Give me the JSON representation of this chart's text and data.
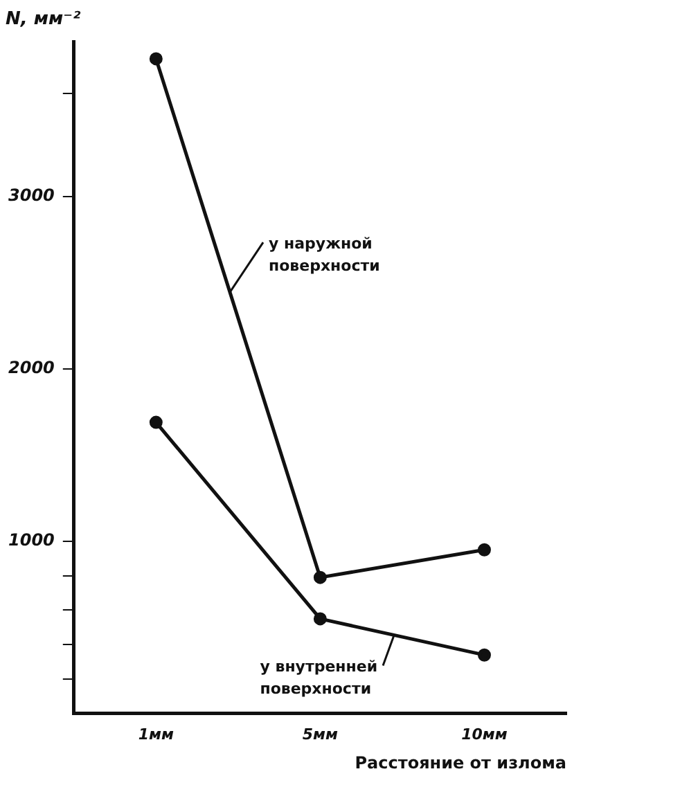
{
  "chart_data": {
    "type": "line",
    "xlabel": "Расстояние от излома",
    "ylabel": "N, мм⁻²",
    "categories": [
      "1мм",
      "5мм",
      "10мм"
    ],
    "series": [
      {
        "name": "у наружной поверхности",
        "color": "#111111",
        "values": [
          3800,
          790,
          950
        ]
      },
      {
        "name": "у внутренней поверхности",
        "color": "#111111",
        "values": [
          1690,
          550,
          340
        ]
      }
    ],
    "ylim": [
      0,
      3900
    ],
    "yticks": [
      {
        "value": 200,
        "label": null
      },
      {
        "value": 400,
        "label": null
      },
      {
        "value": 600,
        "label": null
      },
      {
        "value": 800,
        "label": null
      },
      1000,
      2000,
      3000,
      {
        "value": 3600,
        "label": null
      }
    ],
    "grid": false,
    "legend": false,
    "marker": "circle",
    "line_style": "solid"
  }
}
